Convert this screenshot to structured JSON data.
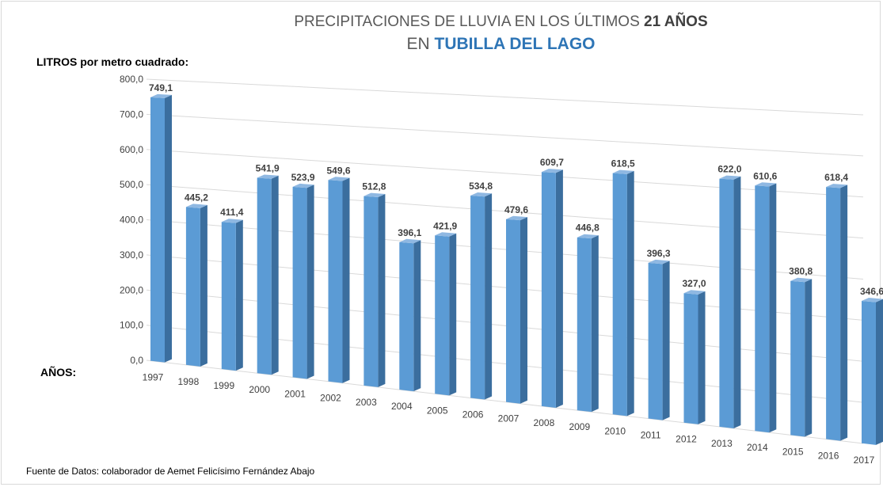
{
  "title": {
    "line1_prefix": "PRECIPITACIONES DE LLUVIA EN LOS ÚLTIMOS",
    "line1_bold": "21 AÑOS",
    "line2_prefix": "EN",
    "line2_bold": "TUBILLA DEL LAGO"
  },
  "source": "Fuente de Datos: colaborador de Aemet Felicísimo Fernández Abajo",
  "chart_data": {
    "type": "bar",
    "ylabel": "LITROS por metro cuadrado:",
    "xlabel": "AÑOS:",
    "ylim": [
      0,
      800
    ],
    "yticks": [
      "0,0",
      "100,0",
      "200,0",
      "300,0",
      "400,0",
      "500,0",
      "600,0",
      "700,0",
      "800,0"
    ],
    "categories": [
      "1997",
      "1998",
      "1999",
      "2000",
      "2001",
      "2002",
      "2003",
      "2004",
      "2005",
      "2006",
      "2007",
      "2008",
      "2009",
      "2010",
      "2011",
      "2012",
      "2013",
      "2014",
      "2015",
      "2016",
      "2017"
    ],
    "values": [
      749.1,
      445.2,
      411.4,
      541.9,
      523.9,
      549.6,
      512.8,
      396.1,
      421.9,
      534.8,
      479.6,
      609.7,
      446.8,
      618.5,
      396.3,
      327.0,
      622.0,
      610.6,
      380.8,
      618.4,
      346.6
    ],
    "value_labels": [
      "749,1",
      "445,2",
      "411,4",
      "541,9",
      "523,9",
      "549,6",
      "512,8",
      "396,1",
      "421,9",
      "534,8",
      "479,6",
      "609,7",
      "446,8",
      "618,5",
      "396,3",
      "327,0",
      "622,0",
      "610,6",
      "380,8",
      "618,4",
      "346,6"
    ],
    "grid": true,
    "colors": {
      "bar_front": "#5b9bd5",
      "bar_side": "#3b6e9e",
      "bar_top": "#8fb8e2",
      "gridline": "#d9d9d9"
    }
  }
}
